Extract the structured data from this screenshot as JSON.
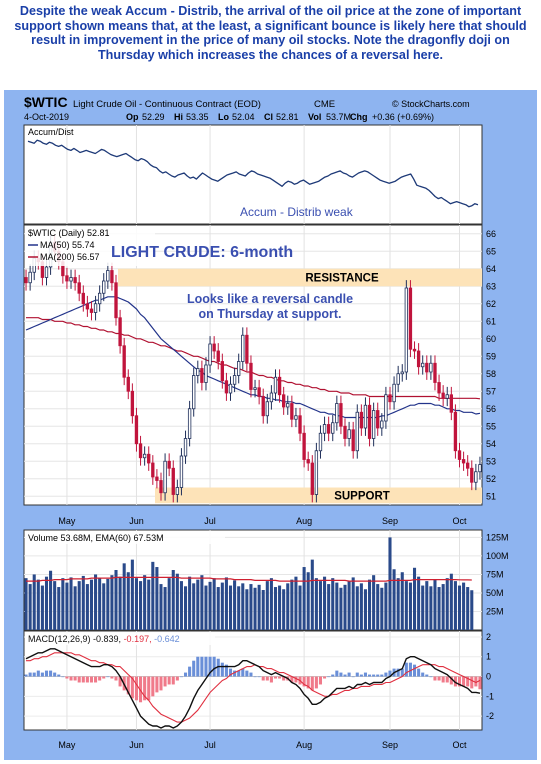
{
  "caption": "Despite the weak Accum - Distrib, the arrival of the oil price at the zone of important support shown means that, at the least, a significant bounce is likely here that should result in improvement in the price of many oil stocks. Note the dragonfly doji on Thursday which increases the chances of a reversal here.",
  "header": {
    "symbol": "$WTIC",
    "name": "Light Crude Oil - Continuous Contract (EOD)",
    "exchange": "CME",
    "brand": "© StockCharts.com",
    "date": "4-Oct-2019",
    "open_label": "Op",
    "open": "52.29",
    "high_label": "Hi",
    "high": "53.35",
    "low_label": "Lo",
    "low": "52.04",
    "close_label": "Cl",
    "close": "52.81",
    "volume_label": "Vol",
    "volume": "53.7M",
    "change_label": "Chg",
    "change": "+0.36 (+0.69%)"
  },
  "colors": {
    "frame_blue": "#8eb4f0",
    "panel_border": "#333333",
    "up": "#1f2f5a",
    "down": "#c0143c",
    "band": "#fde3b8",
    "ma50": "#22338a",
    "ma200": "#b01030",
    "caption": "#1a3fa8",
    "annotation": "#3a4fb0",
    "macd_line": "#101010",
    "signal_line": "#e03040",
    "hist_pos": "#6a8fd8",
    "hist_neg": "#f07a8a",
    "vol_bar": "#2a4a8a",
    "ema_line": "#d02030"
  },
  "chart_data": [
    {
      "type": "line",
      "panel": "Accum/Dist",
      "title": "Accum/Dist",
      "annotation": "Accum - Distrib weak",
      "values": [
        75,
        74,
        73,
        76,
        75,
        73,
        72,
        74,
        73,
        71,
        70,
        71,
        69,
        67,
        66,
        68,
        66,
        64,
        65,
        66,
        65,
        64,
        63,
        65,
        67,
        66,
        64,
        62,
        61,
        60,
        61,
        62,
        63,
        61,
        59,
        57,
        56,
        58,
        57,
        55,
        52,
        50,
        49,
        46,
        44,
        45,
        43,
        41,
        40,
        42,
        43,
        44,
        41,
        39,
        40,
        38,
        41,
        44,
        42,
        40,
        38,
        37,
        36,
        38,
        40,
        42,
        43,
        44,
        45,
        43,
        42,
        41,
        44,
        46,
        45,
        43,
        42,
        41,
        40,
        39,
        37,
        35,
        33,
        31,
        34,
        36,
        35,
        33,
        34,
        36,
        37,
        35,
        33,
        34,
        35,
        36,
        38,
        40,
        41,
        43,
        44,
        45,
        46,
        44,
        43,
        41,
        40,
        42,
        44,
        45,
        46,
        45,
        43,
        41,
        39,
        37,
        36,
        35,
        34,
        35,
        36,
        38,
        40,
        41,
        42,
        43,
        38,
        32,
        31,
        30,
        29,
        27,
        24,
        21,
        19,
        20,
        18,
        16,
        14,
        15,
        16,
        15,
        14,
        13,
        11,
        12,
        14,
        13
      ]
    },
    {
      "type": "candlestick",
      "panel": "price",
      "title": "LIGHT CRUDE: 6-month",
      "legend": [
        "$WTIC (Daily) 52.81",
        "MA(50) 55.74",
        "MA(200) 56.57"
      ],
      "x_ticks": [
        "May",
        "Jun",
        "Jul",
        "Aug",
        "Sep",
        "Oct"
      ],
      "x_tick_index": [
        10,
        27,
        45,
        68,
        89,
        106
      ],
      "y_ticks": [
        51,
        52,
        53,
        54,
        55,
        56,
        57,
        58,
        59,
        60,
        61,
        62,
        63,
        64,
        65,
        66
      ],
      "ylim": [
        50.5,
        66.5
      ],
      "resistance_label": "RESISTANCE",
      "resistance_zone": [
        63.0,
        64.0
      ],
      "support_label": "SUPPORT",
      "support_zone": [
        50.6,
        51.5
      ],
      "annotation": "Looks like a reversal candle on Thursday at support.",
      "closes": [
        63.2,
        63.8,
        64.6,
        64.4,
        63.5,
        64.1,
        65.5,
        65.0,
        64.4,
        63.6,
        63.3,
        63.5,
        63.2,
        62.6,
        62.0,
        61.7,
        61.5,
        62.0,
        62.6,
        63.3,
        63.9,
        63.2,
        61.2,
        59.6,
        57.8,
        57.0,
        55.6,
        54.0,
        53.2,
        53.4,
        52.9,
        52.1,
        51.9,
        51.2,
        53.0,
        52.6,
        51.1,
        51.5,
        53.3,
        54.3,
        56.0,
        57.9,
        58.3,
        57.5,
        58.5,
        59.7,
        59.3,
        58.7,
        57.6,
        56.9,
        57.4,
        57.9,
        58.7,
        60.2,
        58.6,
        57.1,
        57.2,
        56.7,
        55.6,
        56.4,
        56.9,
        57.8,
        56.8,
        56.1,
        56.3,
        55.4,
        55.6,
        54.6,
        53.1,
        52.9,
        51.1,
        53.6,
        54.6,
        55.1,
        54.6,
        55.2,
        56.3,
        55.0,
        54.3,
        54.8,
        53.6,
        55.8,
        54.9,
        56.2,
        54.3,
        55.9,
        54.9,
        55.3,
        56.8,
        56.4,
        57.4,
        58.0,
        58.1,
        62.9,
        59.4,
        59.3,
        58.4,
        58.6,
        58.1,
        58.6,
        57.5,
        56.9,
        56.6,
        56.8,
        55.8,
        53.6,
        53.1,
        52.9,
        52.6,
        51.8,
        52.4,
        52.81
      ],
      "ma50": [
        60.5,
        60.6,
        60.7,
        60.8,
        60.9,
        61.0,
        61.1,
        61.2,
        61.3,
        61.4,
        61.5,
        61.6,
        61.7,
        61.8,
        61.9,
        62.0,
        62.1,
        62.2,
        62.2,
        62.3,
        62.4,
        62.4,
        62.4,
        62.3,
        62.2,
        62.1,
        61.9,
        61.7,
        61.4,
        61.2,
        60.9,
        60.6,
        60.3,
        60.0,
        59.8,
        59.6,
        59.4,
        59.2,
        59.0,
        58.8,
        58.6,
        58.4,
        58.2,
        58.1,
        57.9,
        57.8,
        57.7,
        57.6,
        57.5,
        57.4,
        57.3,
        57.2,
        57.1,
        57.0,
        56.9,
        56.8,
        56.8,
        56.7,
        56.7,
        56.6,
        56.6,
        56.5,
        56.5,
        56.4,
        56.4,
        56.4,
        56.3,
        56.3,
        56.2,
        56.1,
        56.0,
        55.9,
        55.8,
        55.8,
        55.7,
        55.7,
        55.6,
        55.6,
        55.5,
        55.5,
        55.5,
        55.5,
        55.5,
        55.5,
        55.5,
        55.5,
        55.5,
        55.6,
        55.6,
        55.7,
        55.8,
        55.9,
        56.0,
        56.1,
        56.2,
        56.2,
        56.3,
        56.3,
        56.3,
        56.3,
        56.2,
        56.2,
        56.1,
        56.0,
        56.0,
        55.9,
        55.9,
        55.8,
        55.8,
        55.8,
        55.7,
        55.74
      ],
      "ma200": [
        61.2,
        61.2,
        61.2,
        61.2,
        61.1,
        61.1,
        61.1,
        61.0,
        61.0,
        61.0,
        60.9,
        60.9,
        60.8,
        60.8,
        60.7,
        60.7,
        60.6,
        60.6,
        60.5,
        60.5,
        60.4,
        60.4,
        60.3,
        60.3,
        60.2,
        60.2,
        60.1,
        60.0,
        60.0,
        59.9,
        59.8,
        59.8,
        59.7,
        59.6,
        59.6,
        59.5,
        59.4,
        59.3,
        59.3,
        59.2,
        59.1,
        59.0,
        59.0,
        58.9,
        58.8,
        58.7,
        58.7,
        58.6,
        58.5,
        58.5,
        58.4,
        58.3,
        58.3,
        58.2,
        58.1,
        58.1,
        58.0,
        57.9,
        57.9,
        57.8,
        57.8,
        57.7,
        57.6,
        57.6,
        57.5,
        57.5,
        57.4,
        57.4,
        57.3,
        57.3,
        57.2,
        57.2,
        57.1,
        57.1,
        57.0,
        57.0,
        57.0,
        56.9,
        56.9,
        56.9,
        56.8,
        56.8,
        56.8,
        56.8,
        56.7,
        56.7,
        56.7,
        56.7,
        56.7,
        56.7,
        56.7,
        56.7,
        56.7,
        56.7,
        56.7,
        56.7,
        56.7,
        56.7,
        56.7,
        56.7,
        56.7,
        56.6,
        56.6,
        56.6,
        56.6,
        56.6,
        56.6,
        56.6,
        56.6,
        56.6,
        56.6,
        56.57
      ]
    },
    {
      "type": "bar",
      "panel": "Volume",
      "legend": [
        "Volume 53.68M",
        "EMA(60) 67.53M"
      ],
      "y_ticks": [
        "25M",
        "50M",
        "75M",
        "100M",
        "125M"
      ],
      "ylim": [
        0,
        135
      ],
      "values": [
        70,
        62,
        75,
        68,
        60,
        72,
        80,
        66,
        58,
        70,
        64,
        71,
        59,
        66,
        73,
        62,
        68,
        75,
        70,
        63,
        69,
        74,
        81,
        72,
        90,
        78,
        95,
        70,
        66,
        74,
        68,
        92,
        85,
        62,
        58,
        70,
        81,
        76,
        66,
        59,
        72,
        63,
        68,
        74,
        60,
        65,
        70,
        58,
        64,
        71,
        60,
        67,
        59,
        63,
        55,
        62,
        57,
        61,
        54,
        66,
        70,
        58,
        60,
        55,
        63,
        68,
        72,
        60,
        85,
        78,
        95,
        70,
        66,
        72,
        62,
        70,
        64,
        57,
        61,
        66,
        71,
        59,
        63,
        55,
        68,
        74,
        62,
        57,
        64,
        125,
        82,
        70,
        78,
        66,
        64,
        84,
        72,
        60,
        66,
        59,
        68,
        58,
        62,
        70,
        76,
        66,
        60,
        64,
        58,
        53.68
      ],
      "ema": [
        66,
        66,
        66,
        66,
        67,
        67,
        67,
        68,
        68,
        68,
        68,
        69,
        69,
        69,
        69,
        69,
        70,
        70,
        70,
        70,
        70,
        70,
        71,
        71,
        71,
        71,
        71,
        71,
        71,
        71,
        71,
        71,
        71,
        71,
        71,
        71,
        71,
        71,
        70,
        70,
        70,
        70,
        70,
        70,
        70,
        70,
        69,
        69,
        69,
        69,
        69,
        68,
        68,
        68,
        68,
        68,
        67,
        67,
        67,
        67,
        67,
        67,
        66,
        66,
        66,
        66,
        66,
        66,
        66,
        66,
        67,
        67,
        67,
        67,
        67,
        67,
        67,
        67,
        67,
        66,
        66,
        66,
        66,
        66,
        66,
        66,
        66,
        66,
        66,
        67,
        67,
        67,
        67,
        67,
        67,
        68,
        68,
        68,
        68,
        68,
        68,
        68,
        68,
        68,
        68,
        68,
        67.8,
        67.7,
        67.6,
        67.53
      ]
    },
    {
      "type": "line",
      "panel": "MACD",
      "legend": [
        "MACD(12,26,9)",
        "-0.839",
        "-0.197",
        "-0.642"
      ],
      "y_ticks": [
        -2,
        -1,
        0,
        1,
        2
      ],
      "ylim": [
        -2.7,
        2.3
      ],
      "macd": [
        0.9,
        1.0,
        1.1,
        1.2,
        1.2,
        1.3,
        1.4,
        1.4,
        1.3,
        1.2,
        1.1,
        1.0,
        0.9,
        0.8,
        0.7,
        0.6,
        0.5,
        0.5,
        0.5,
        0.6,
        0.6,
        0.5,
        0.3,
        0.0,
        -0.4,
        -0.8,
        -1.2,
        -1.6,
        -2.0,
        -2.2,
        -2.4,
        -2.5,
        -2.5,
        -2.6,
        -2.5,
        -2.5,
        -2.6,
        -2.5,
        -2.3,
        -2.0,
        -1.6,
        -1.1,
        -0.7,
        -0.4,
        -0.1,
        0.2,
        0.4,
        0.5,
        0.5,
        0.5,
        0.5,
        0.5,
        0.6,
        0.8,
        0.8,
        0.7,
        0.6,
        0.5,
        0.3,
        0.2,
        0.1,
        0.2,
        0.1,
        0.0,
        -0.1,
        -0.3,
        -0.4,
        -0.6,
        -0.9,
        -1.1,
        -1.4,
        -1.4,
        -1.3,
        -1.1,
        -1.0,
        -0.8,
        -0.6,
        -0.6,
        -0.6,
        -0.5,
        -0.6,
        -0.4,
        -0.4,
        -0.3,
        -0.4,
        -0.3,
        -0.3,
        -0.3,
        -0.1,
        0.0,
        0.2,
        0.3,
        0.4,
        0.9,
        1.0,
        1.0,
        0.9,
        0.8,
        0.7,
        0.6,
        0.4,
        0.3,
        0.2,
        0.1,
        -0.1,
        -0.3,
        -0.4,
        -0.5,
        -0.6,
        -0.8,
        -0.8,
        -0.839
      ],
      "signal": [
        0.8,
        0.8,
        0.9,
        0.9,
        1.0,
        1.0,
        1.1,
        1.2,
        1.2,
        1.2,
        1.2,
        1.2,
        1.1,
        1.1,
        1.0,
        0.9,
        0.8,
        0.8,
        0.7,
        0.7,
        0.6,
        0.6,
        0.5,
        0.5,
        0.3,
        0.1,
        -0.1,
        -0.4,
        -0.7,
        -1.0,
        -1.2,
        -1.5,
        -1.7,
        -1.9,
        -2.0,
        -2.1,
        -2.2,
        -2.3,
        -2.3,
        -2.2,
        -2.1,
        -1.9,
        -1.7,
        -1.4,
        -1.1,
        -0.8,
        -0.6,
        -0.4,
        -0.2,
        -0.1,
        0.1,
        0.2,
        0.3,
        0.4,
        0.5,
        0.5,
        0.6,
        0.5,
        0.5,
        0.4,
        0.4,
        0.3,
        0.2,
        0.2,
        0.1,
        0.0,
        -0.1,
        -0.2,
        -0.4,
        -0.5,
        -0.7,
        -0.8,
        -0.9,
        -1.0,
        -1.0,
        -0.9,
        -0.9,
        -0.8,
        -0.7,
        -0.7,
        -0.6,
        -0.6,
        -0.5,
        -0.5,
        -0.5,
        -0.4,
        -0.4,
        -0.4,
        -0.3,
        -0.3,
        -0.2,
        -0.1,
        0.0,
        0.2,
        0.3,
        0.4,
        0.5,
        0.6,
        0.6,
        0.6,
        0.6,
        0.5,
        0.5,
        0.4,
        0.3,
        0.2,
        0.1,
        0.0,
        -0.1,
        -0.2,
        -0.3,
        -0.197
      ]
    }
  ]
}
